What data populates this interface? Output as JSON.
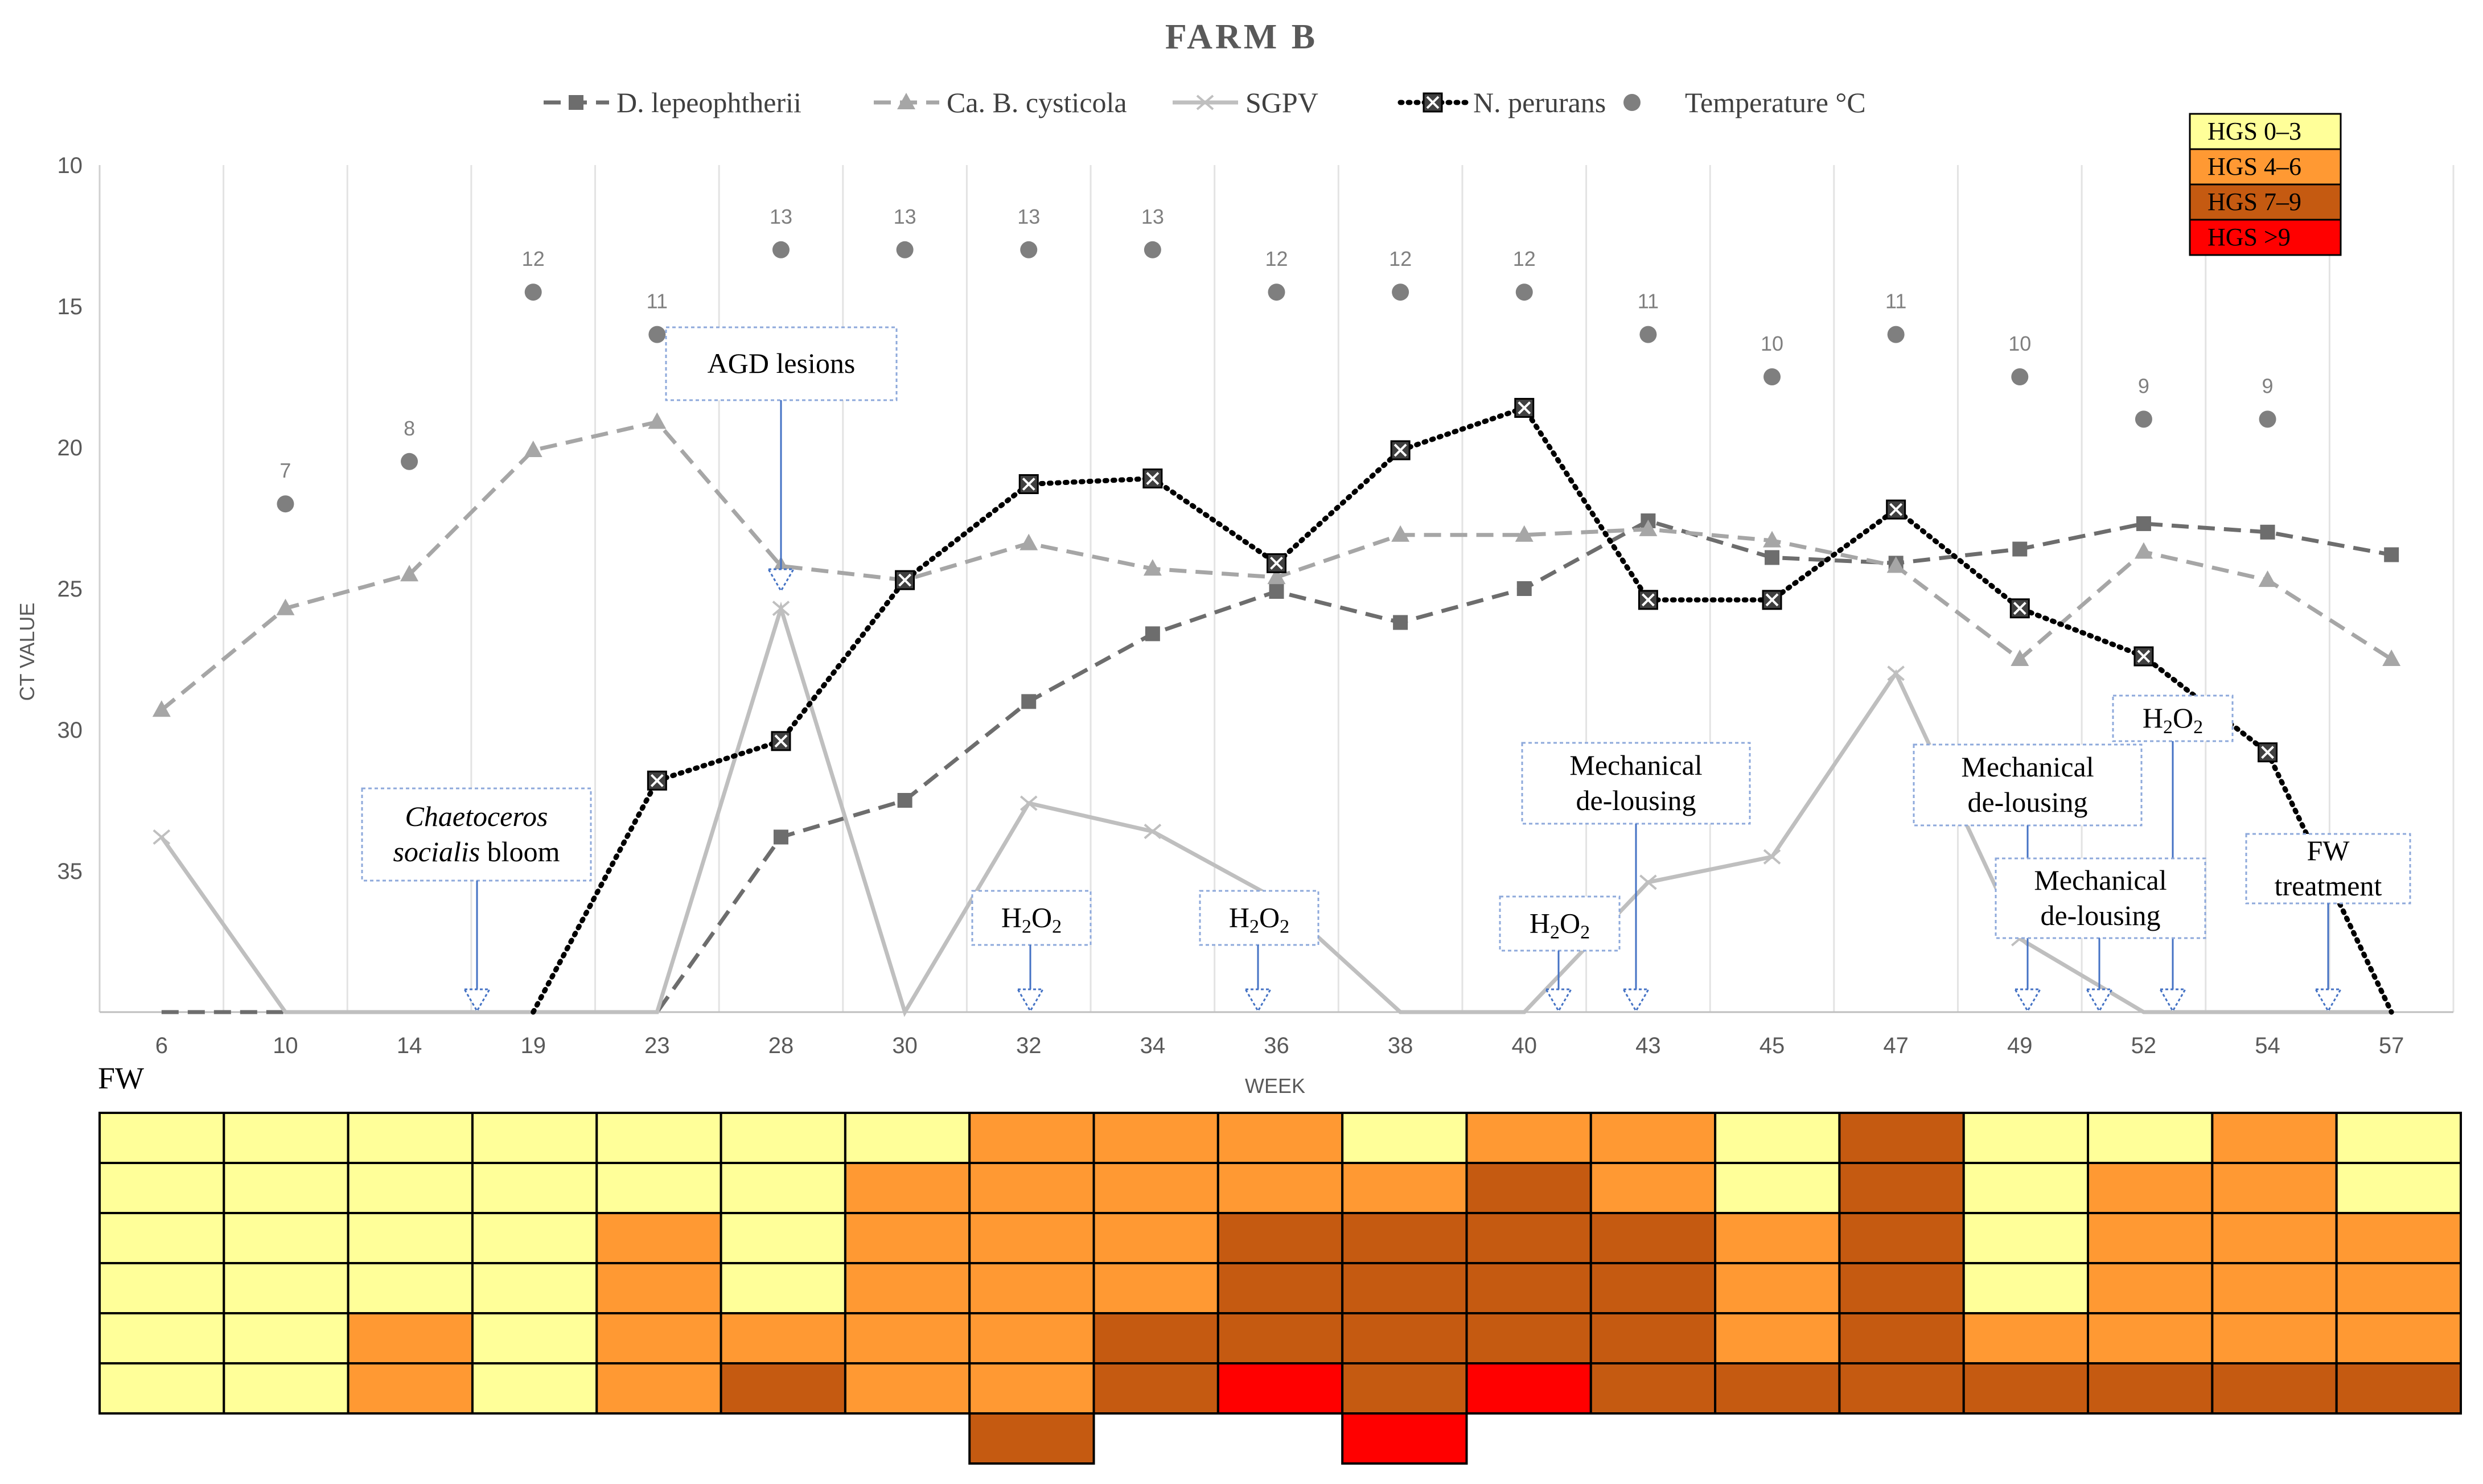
{
  "chart_data": {
    "type": "line",
    "title": "FARM B",
    "xlabel": "WEEK",
    "ylabel": "CT VALUE",
    "ylim": [
      10,
      40
    ],
    "y_inverted": true,
    "y_ticks": [
      10,
      15,
      20,
      25,
      30,
      35
    ],
    "grid": "vertical",
    "legend_position": "top",
    "categories": [
      "6",
      "10",
      "14",
      "19",
      "23",
      "28",
      "30",
      "32",
      "34",
      "36",
      "38",
      "40",
      "43",
      "45",
      "47",
      "49",
      "52",
      "54",
      "57"
    ],
    "series": [
      {
        "name": "D. lepeophtherii",
        "color": "#6d6d6d",
        "style": "dashed",
        "marker": "square",
        "values": [
          40,
          40,
          40,
          40,
          40,
          33.8,
          32.5,
          29,
          26.6,
          25.1,
          26.2,
          25,
          22.6,
          23.9,
          24.1,
          23.6,
          22.7,
          23,
          23.8
        ]
      },
      {
        "name": "Ca. B. cysticola",
        "color": "#a6a6a6",
        "style": "dashed",
        "marker": "triangle",
        "values": [
          29.3,
          25.7,
          24.5,
          20.1,
          19.1,
          24.2,
          24.7,
          23.4,
          24.3,
          24.6,
          23.1,
          23.1,
          22.9,
          23.3,
          24.2,
          27.5,
          23.7,
          24.7,
          27.5
        ]
      },
      {
        "name": "SGPV",
        "color": "#bfbfbf",
        "style": "solid",
        "marker": "x",
        "values": [
          33.8,
          40,
          40,
          40,
          40,
          25.7,
          40,
          32.6,
          33.6,
          36,
          40,
          40,
          35.4,
          34.5,
          28,
          37.4,
          40,
          40,
          40
        ]
      },
      {
        "name": "N. perurans",
        "color": "#000000",
        "style": "dotted",
        "marker": "boxed-x",
        "values": [
          null,
          null,
          null,
          40,
          31.8,
          30.4,
          24.7,
          21.3,
          21.1,
          24.1,
          20.1,
          18.6,
          25.4,
          25.4,
          22.2,
          25.7,
          27.4,
          30.8,
          40
        ]
      },
      {
        "name": "Temperature °C",
        "color": "#7f7f7f",
        "style": "none",
        "marker": "circle",
        "values": [
          null,
          7,
          8,
          12,
          11,
          13,
          13,
          13,
          13,
          12,
          12,
          12,
          11,
          10,
          11,
          10,
          9,
          9,
          null
        ],
        "positions": [
          null,
          22,
          20.5,
          14.5,
          16,
          13,
          13,
          13,
          13,
          14.5,
          14.5,
          14.5,
          16,
          17.5,
          16,
          17.5,
          19,
          19,
          null
        ]
      }
    ],
    "annotations": [
      {
        "text": "AGD lesions",
        "arrow_x": "28"
      },
      {
        "lines": [
          "Chaetoceros",
          "socialis bloom"
        ],
        "italic_part": "Chaetoceros socialis",
        "arrow_x": "19"
      },
      {
        "html": "H<tspan baseline-shift='sub' font-size='34'>2</tspan>O<tspan baseline-shift='sub' font-size='34'>2</tspan>",
        "text": "H2O2",
        "arrow_x": "32"
      },
      {
        "text": "H2O2",
        "arrow_x": "36"
      },
      {
        "text": "H2O2",
        "arrow_x": "40"
      },
      {
        "lines": [
          "Mechanical",
          "de-lousing"
        ],
        "arrow_x": "43"
      },
      {
        "lines": [
          "Mechanical",
          "de-lousing"
        ],
        "arrow_x": "49"
      },
      {
        "text": "H2O2",
        "arrow_x": "52"
      },
      {
        "lines": [
          "Mechanical",
          "de-lousing"
        ],
        "arrow_x": "52"
      },
      {
        "lines": [
          "FW",
          "treatment"
        ],
        "arrow_x": "54"
      }
    ],
    "hgs_legend": [
      {
        "label": "HGS 0–3",
        "color": "#ffff99"
      },
      {
        "label": "HGS 4–6",
        "color": "#ff9933"
      },
      {
        "label": "HGS 7–9",
        "color": "#c55a11"
      },
      {
        "label": "HGS >9",
        "color": "#ff0000"
      }
    ],
    "heatmap": {
      "label": "FW",
      "rows": [
        [
          0,
          0,
          0,
          0,
          0,
          0,
          0,
          1,
          1,
          1,
          0,
          1,
          1,
          0,
          2,
          0,
          0,
          1,
          0
        ],
        [
          0,
          0,
          0,
          0,
          0,
          0,
          1,
          1,
          1,
          1,
          1,
          2,
          1,
          0,
          2,
          0,
          1,
          1,
          0
        ],
        [
          0,
          0,
          0,
          0,
          1,
          0,
          1,
          1,
          1,
          2,
          2,
          2,
          2,
          1,
          2,
          0,
          1,
          1,
          1
        ],
        [
          0,
          0,
          0,
          0,
          1,
          0,
          1,
          1,
          1,
          2,
          2,
          2,
          2,
          1,
          2,
          0,
          1,
          1,
          1
        ],
        [
          0,
          0,
          1,
          0,
          1,
          1,
          1,
          1,
          2,
          2,
          2,
          2,
          2,
          1,
          2,
          1,
          1,
          1,
          1
        ],
        [
          0,
          0,
          1,
          0,
          1,
          2,
          1,
          1,
          2,
          3,
          2,
          3,
          2,
          2,
          2,
          2,
          2,
          2,
          2
        ],
        [
          null,
          null,
          null,
          null,
          null,
          null,
          null,
          2,
          null,
          null,
          3,
          null,
          null,
          null,
          null,
          null,
          null,
          null,
          null
        ]
      ]
    }
  }
}
